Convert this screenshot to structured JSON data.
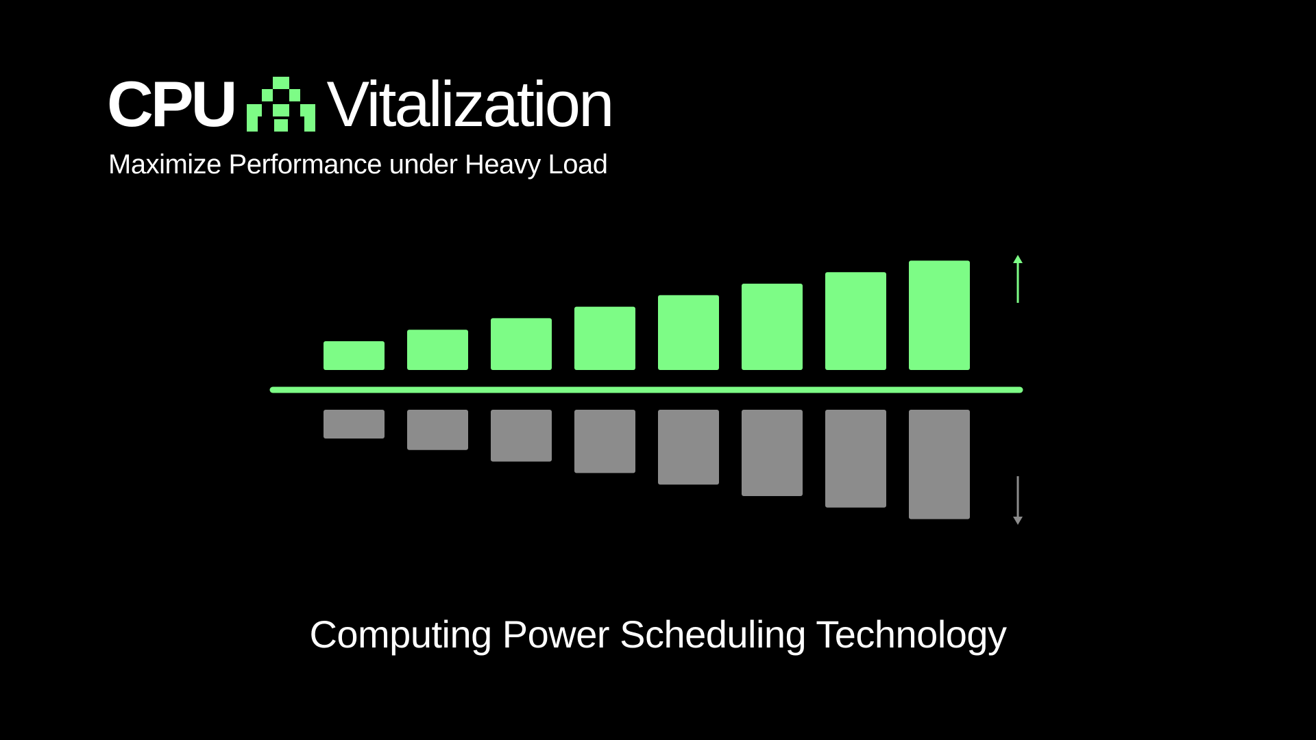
{
  "header": {
    "title_left": "CPU",
    "title_right": "Vitalization",
    "subtitle": "Maximize Performance under Heavy Load"
  },
  "logo": {
    "icon": "green-pixel-arch-logo",
    "color": "#7dfc86"
  },
  "chart_data": {
    "type": "bar",
    "categories": [
      "",
      "",
      "",
      "",
      "",
      "",
      "",
      ""
    ],
    "series": [
      {
        "values": [
          1.0,
          1.4,
          1.8,
          2.2,
          2.6,
          3.0,
          3.4,
          3.8
        ],
        "color": "#7dfc86"
      },
      {
        "values": [
          -1.0,
          -1.4,
          -1.8,
          -2.2,
          -2.6,
          -3.0,
          -3.4,
          -3.8
        ],
        "color": "#8c8c8c"
      }
    ],
    "baseline_color": "#7dfc86",
    "up_arrow_color": "#7dfc86",
    "down_arrow_color": "#8c8c8c",
    "ylim": [
      -4,
      4
    ],
    "grid": false
  },
  "footer": {
    "caption": "Computing Power Scheduling Technology"
  }
}
